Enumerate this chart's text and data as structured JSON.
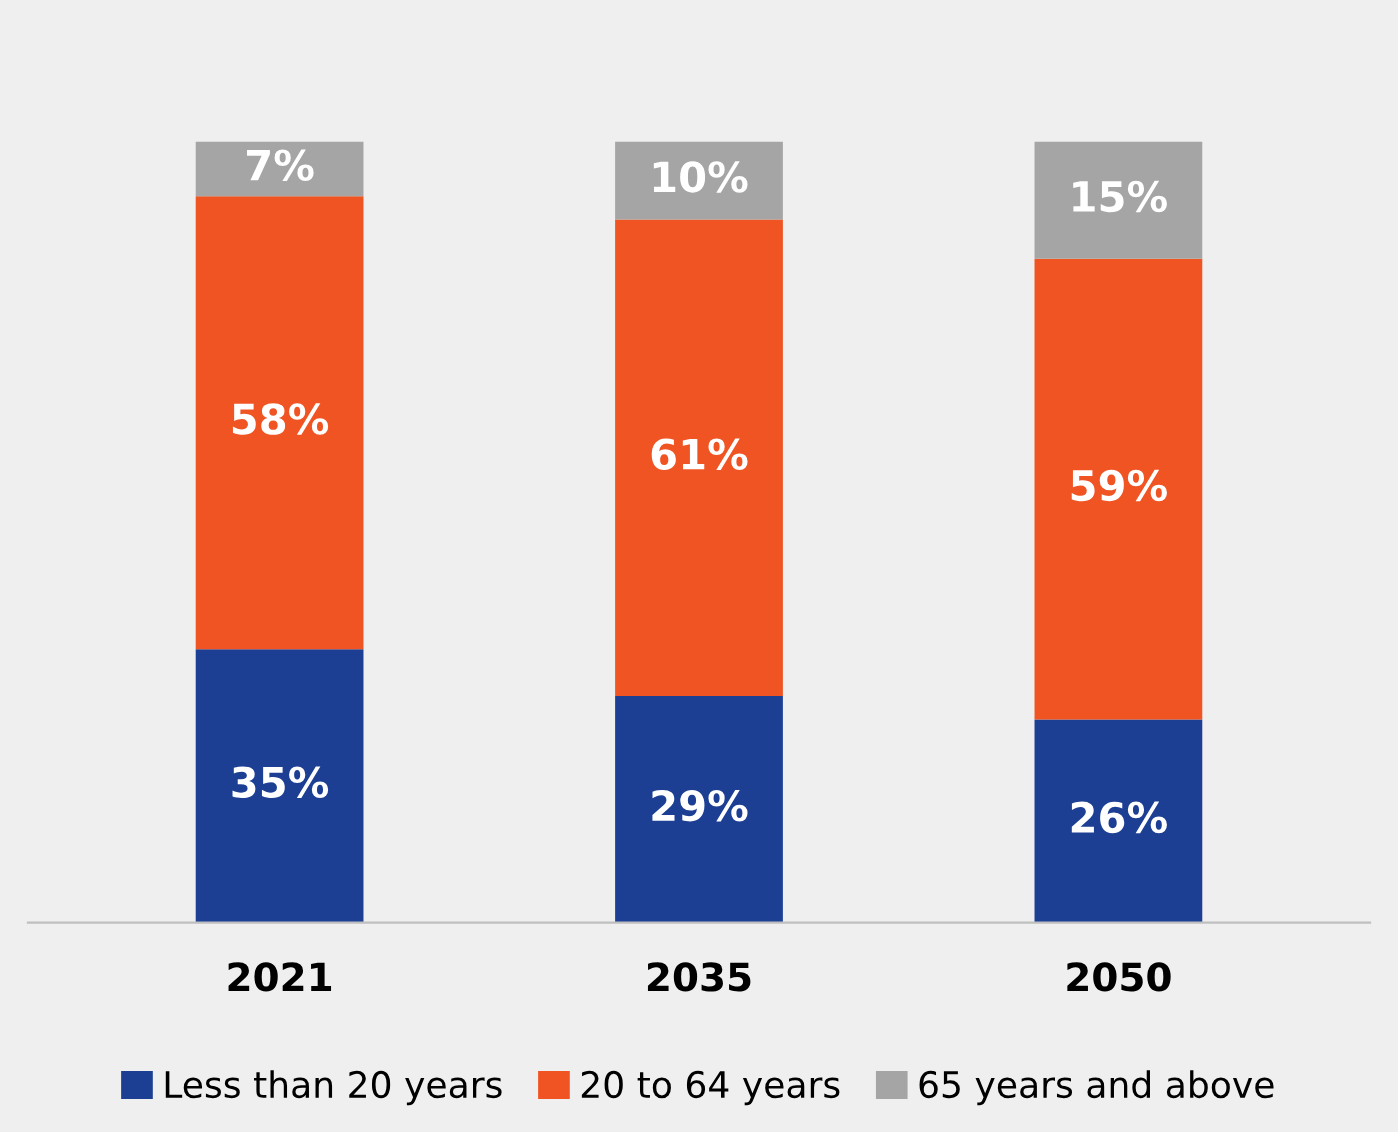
{
  "chart_data": {
    "type": "bar",
    "stacked": true,
    "legend": "bottom",
    "grid": false,
    "categories": [
      "2021",
      "2035",
      "2050"
    ],
    "series": [
      {
        "name": "Less than 20 years",
        "color": "#1c3f94",
        "values": [
          35,
          29,
          26
        ],
        "value_labels": [
          "35%",
          "29%",
          "26%"
        ]
      },
      {
        "name": "20 to 64 years",
        "color": "#f05423",
        "values": [
          58,
          61,
          59
        ],
        "value_labels": [
          "58%",
          "61%",
          "59%"
        ]
      },
      {
        "name": "65 years and above",
        "color": "#a5a5a5",
        "values": [
          7,
          10,
          15
        ],
        "value_labels": [
          "7%",
          "10%",
          "15%"
        ]
      }
    ]
  }
}
